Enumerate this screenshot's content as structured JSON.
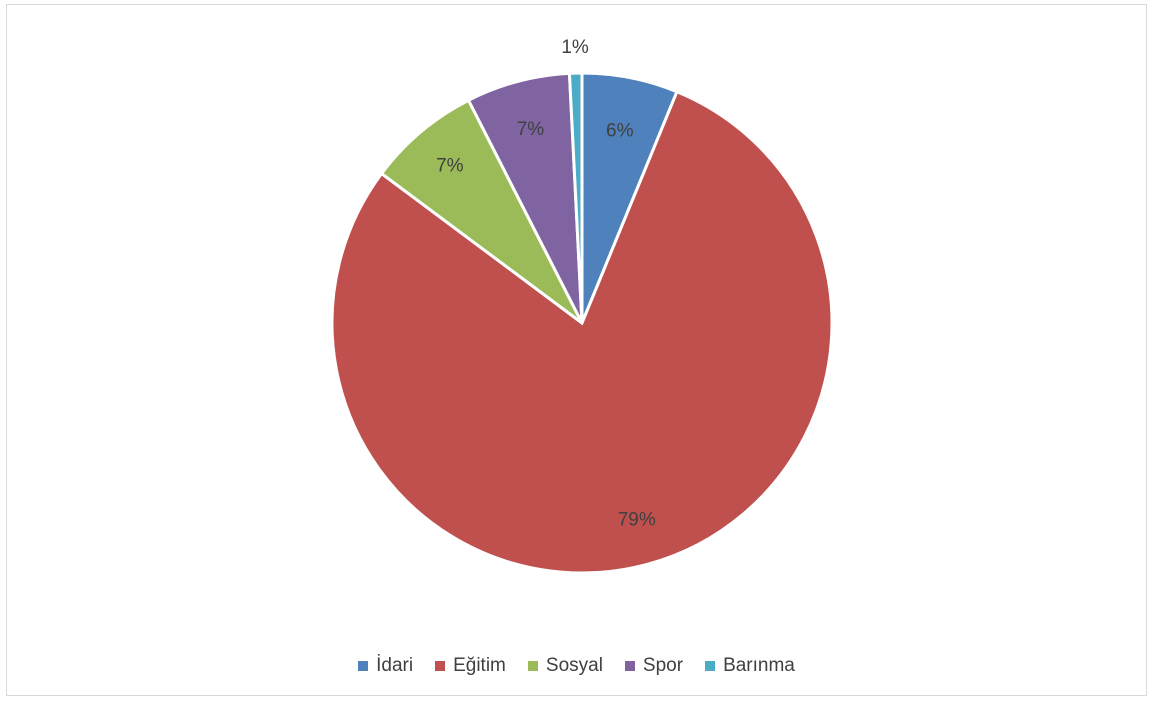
{
  "chart_data": {
    "type": "pie",
    "categories": [
      "İdari",
      "Eğitim",
      "Sosyal",
      "Spor",
      "Barınma"
    ],
    "values": [
      6.2,
      79.0,
      7.3,
      6.7,
      0.8
    ],
    "data_labels": [
      "6%",
      "79%",
      "7%",
      "7%",
      "1%"
    ],
    "colors": [
      "#4f81bd",
      "#c0504d",
      "#9bbb59",
      "#8064a2",
      "#4bacc6"
    ],
    "legend_position": "bottom"
  }
}
